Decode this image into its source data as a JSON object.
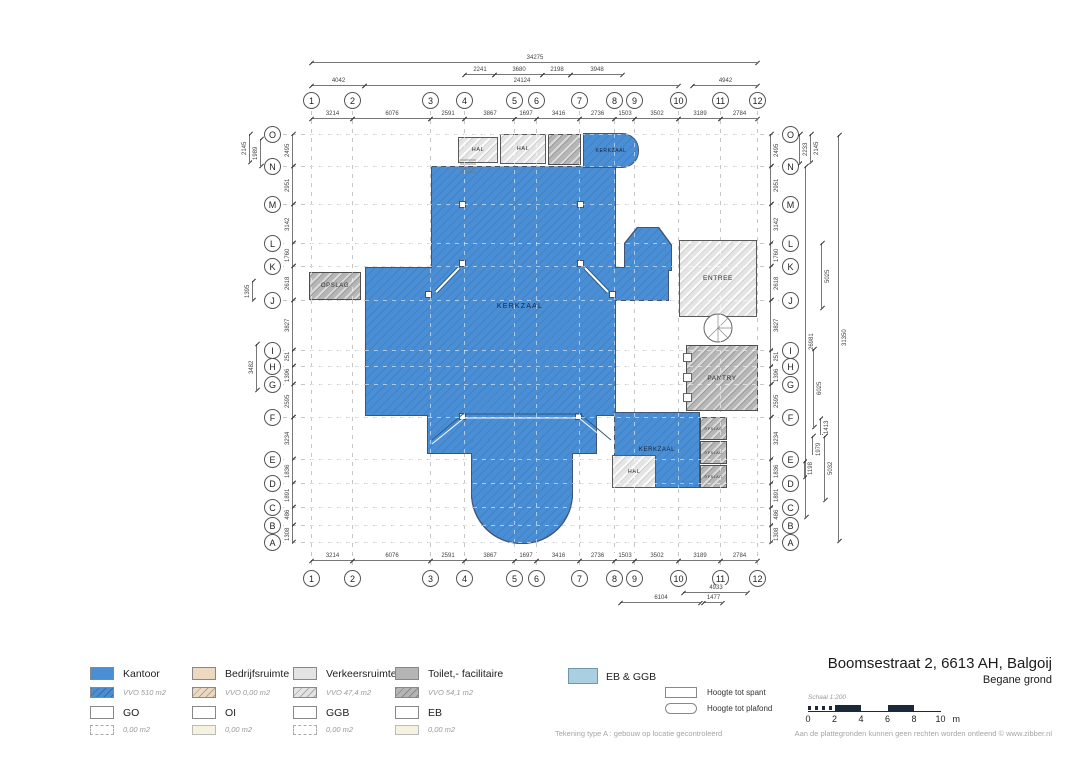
{
  "title": {
    "address": "Boomsestraat 2, 6613 AH, Balgoij",
    "floor": "Begane grond"
  },
  "grid": {
    "columns": [
      "1",
      "2",
      "3",
      "4",
      "5",
      "6",
      "7",
      "8",
      "9",
      "10",
      "11",
      "12"
    ],
    "rows": [
      "O",
      "N",
      "M",
      "L",
      "K",
      "J",
      "I",
      "H",
      "G",
      "F",
      "E",
      "D",
      "C",
      "B",
      "A"
    ]
  },
  "dims": {
    "total_width": "34275",
    "top_sub": [
      "2241",
      "3680",
      "2198",
      "3948"
    ],
    "top_mid": [
      "4042",
      "24124",
      "4942"
    ],
    "bay_widths": [
      "3214",
      "6076",
      "2591",
      "3867",
      "1697",
      "3416",
      "2736",
      "1503",
      "3502",
      "3189",
      "2784"
    ],
    "row_heights": [
      "2495",
      "2951",
      "3142",
      "1760",
      "2618",
      "3827",
      "1251",
      "1396",
      "2595",
      "3234",
      "1836",
      "1891",
      "1486",
      "1308"
    ],
    "left_extra": [
      "2145",
      "1989",
      "1395",
      "3482"
    ],
    "right_extra": [
      "2233",
      "2145",
      "5025",
      "31350",
      "26981",
      "6025",
      "1413",
      "1979",
      "5032",
      "1198"
    ],
    "bottom_extra": [
      "4933",
      "6104",
      "1477"
    ]
  },
  "rooms": [
    {
      "label": "HAL"
    },
    {
      "label": "HAL"
    },
    {
      "label": "KERKZAAL"
    },
    {
      "label": "KERKZAAL"
    },
    {
      "label": "OPSLAG"
    },
    {
      "label": "ENTREE"
    },
    {
      "label": "PANTRY"
    },
    {
      "label": "KERKZAAL"
    },
    {
      "label": "HAL"
    },
    {
      "label": "OPSLAG"
    },
    {
      "label": "OPSLAG"
    },
    {
      "label": "OPSLAG"
    }
  ],
  "legend": {
    "categories": [
      {
        "label": "Kantoor",
        "value": "VVO 510 m2",
        "color": "#4a8fd6"
      },
      {
        "label": "Bedrijfsruimte",
        "value": "VVO 0,00 m2",
        "color": "#edd9c2"
      },
      {
        "label": "Verkeersruimte",
        "value": "VVO 47,4 m2",
        "color": "#e3e3e3"
      },
      {
        "label": "Toilet,- facilitaire",
        "value": "VVO 54,1 m2",
        "color": "#b5b5b5"
      }
    ],
    "areas": [
      {
        "label": "GO",
        "value": "0,00 m2"
      },
      {
        "label": "OI",
        "value": "0,00 m2"
      },
      {
        "label": "GGB",
        "value": "0,00 m2"
      },
      {
        "label": "EB",
        "value": "0,00 m2"
      }
    ],
    "extra": {
      "label": "EB & GGB",
      "color": "#a9cfe0"
    },
    "heights": [
      "Hoogte tot spant",
      "Hoogte tot plafond"
    ]
  },
  "scalebar": {
    "caption": "Schaal 1:200",
    "ticks": [
      "0",
      "2",
      "4",
      "6",
      "8",
      "10"
    ],
    "unit": "m",
    "color": "#1b2a3b"
  },
  "footer": {
    "left": "Tekening type A : gebouw op locatie gecontroleerd",
    "right": "Aan de plattegronden kunnen geen rechten worden ontleend © www.zibber.nl"
  }
}
